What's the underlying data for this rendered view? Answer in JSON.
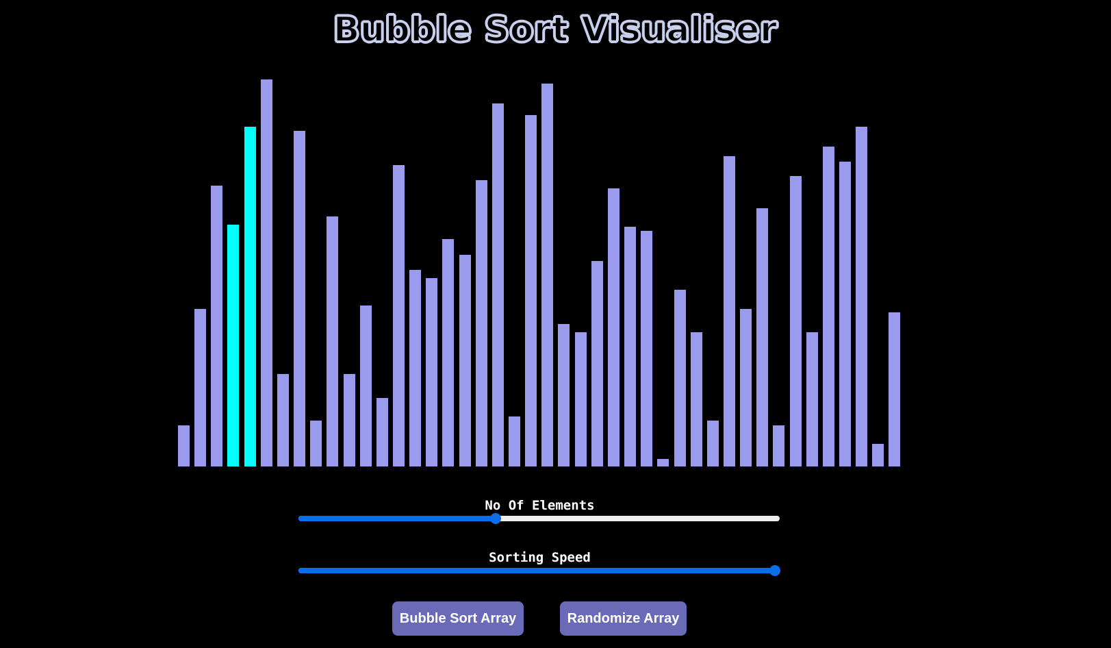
{
  "header": {
    "title": "Bubble Sort Visualiser"
  },
  "colors": {
    "background": "#000000",
    "bar": "#9b9bee",
    "bar_active": "#00ffff",
    "slider_accent": "#0b6ee9",
    "button": "#6a6ab9"
  },
  "array_bars": {
    "values": [
      60,
      230,
      410,
      353,
      496,
      565,
      135,
      490,
      67,
      365,
      135,
      235,
      100,
      440,
      287,
      275,
      332,
      309,
      418,
      530,
      73,
      513,
      559,
      208,
      196,
      300,
      406,
      350,
      344,
      11,
      258,
      196,
      67,
      453,
      230,
      377,
      60,
      424,
      196,
      467,
      445,
      496,
      33,
      225
    ],
    "active_indices": [
      3,
      4
    ]
  },
  "controls": {
    "elements": {
      "label": "No Of Elements",
      "value_fraction": 0.41
    },
    "speed": {
      "label": "Sorting Speed",
      "value_fraction": 0.99
    }
  },
  "buttons": {
    "sort_label": "Bubble Sort Array",
    "randomize_label": "Randomize Array"
  }
}
